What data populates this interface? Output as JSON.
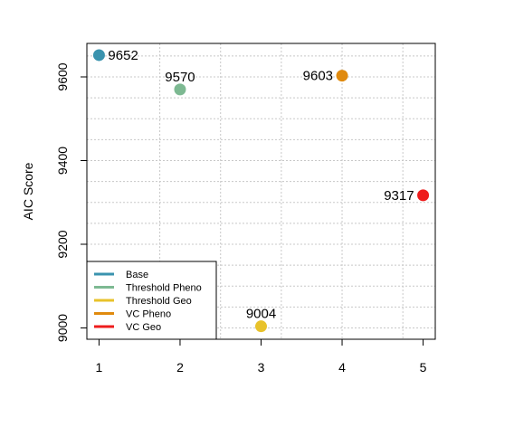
{
  "chart_data": {
    "type": "scatter",
    "title": "",
    "xlabel": "",
    "ylabel": "AIC Score",
    "xlim": [
      0.85,
      5.15
    ],
    "ylim": [
      8973,
      9680
    ],
    "x_ticks": [
      1,
      2,
      3,
      4,
      5
    ],
    "x_tick_labels": [
      "1",
      "2",
      "3",
      "4",
      "5"
    ],
    "y_ticks": [
      9000,
      9200,
      9400,
      9600
    ],
    "y_tick_labels": [
      "9000",
      "9200",
      "9400",
      "9600"
    ],
    "grid": true,
    "legend_position": "bottom-left",
    "series": [
      {
        "name": "Base",
        "color": "#3A93AE",
        "x": 1,
        "y": 9652,
        "label": "9652",
        "label_pos": "right"
      },
      {
        "name": "Threshold Pheno",
        "color": "#7DB992",
        "x": 2,
        "y": 9570,
        "label": "9570",
        "label_pos": "top"
      },
      {
        "name": "Threshold Geo",
        "color": "#E8C22B",
        "x": 3,
        "y": 9004,
        "label": "9004",
        "label_pos": "top"
      },
      {
        "name": "VC Pheno",
        "color": "#E08A0E",
        "x": 4,
        "y": 9603,
        "label": "9603",
        "label_pos": "left"
      },
      {
        "name": "VC Geo",
        "color": "#EE1C1C",
        "x": 5,
        "y": 9317,
        "label": "9317",
        "label_pos": "left"
      }
    ]
  }
}
